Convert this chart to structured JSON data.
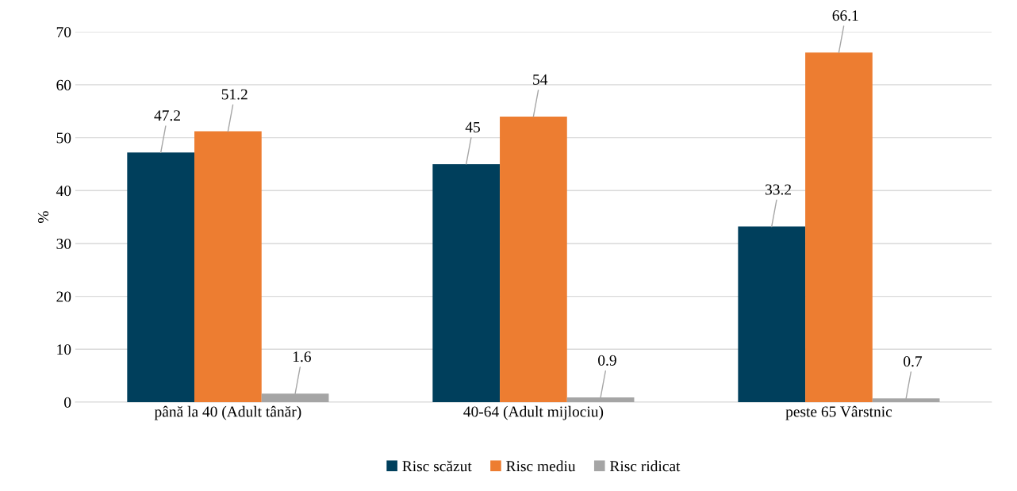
{
  "chart_data": {
    "type": "bar",
    "ylabel": "%",
    "categories": [
      "până la 40 (Adult tânăr)",
      "40-64 (Adult mijlociu)",
      "peste 65 Vârstnic"
    ],
    "series": [
      {
        "name": "Risc scăzut",
        "color": "#003f5c",
        "values": [
          47.2,
          45,
          33.2
        ]
      },
      {
        "name": "Risc mediu",
        "color": "#ed7d31",
        "values": [
          51.2,
          54,
          66.1
        ]
      },
      {
        "name": "Risc ridicat",
        "color": "#a5a5a5",
        "values": [
          1.6,
          0.9,
          0.7
        ]
      }
    ],
    "ylim": [
      0,
      70
    ],
    "yticks": [
      0,
      10,
      20,
      30,
      40,
      50,
      60,
      70
    ],
    "grid": "y",
    "legend": "bottom",
    "data_labels": true
  }
}
